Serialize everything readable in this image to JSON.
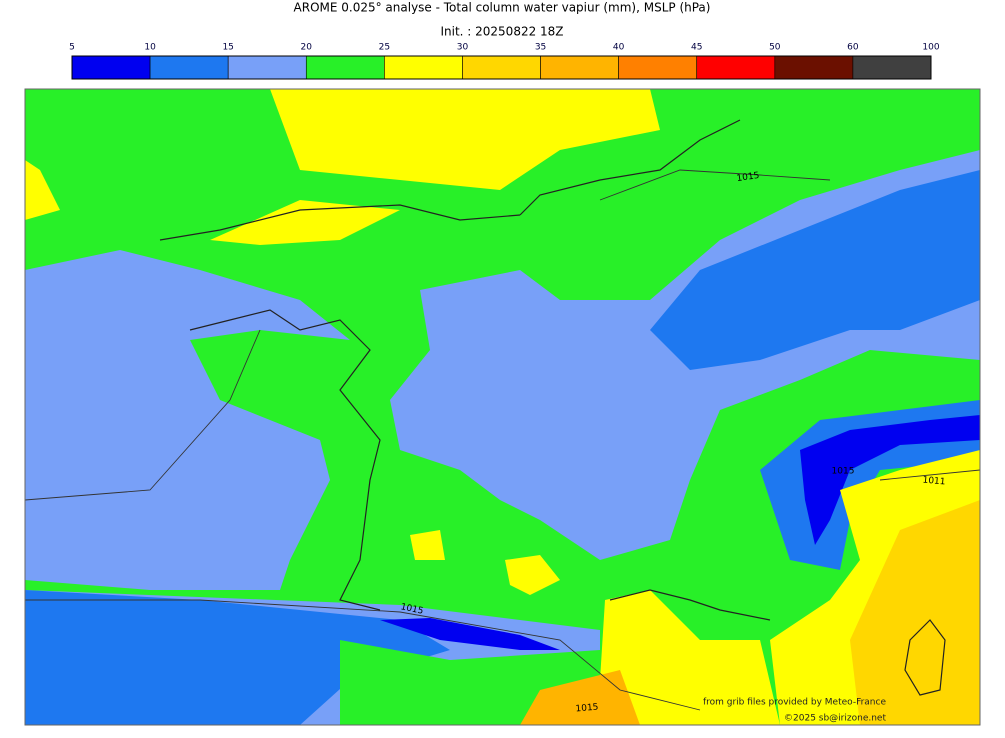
{
  "header": {
    "title": "AROME 0.025° analyse - Total column water vapiur (mm), MSLP (hPa)",
    "subtitle": "Init. : 20250822 18Z"
  },
  "colorbar": {
    "bounds": [
      5,
      10,
      15,
      20,
      25,
      30,
      35,
      40,
      45,
      50,
      60,
      100
    ],
    "colors": [
      "#0000f0",
      "#1e78f0",
      "#78a0f8",
      "#28f028",
      "#ffff00",
      "#ffd700",
      "#ffb400",
      "#ff8000",
      "#ff0000",
      "#6b1000",
      "#404040"
    ]
  },
  "contour_labels": [
    "1015",
    "1015",
    "1011",
    "1015",
    "1015"
  ],
  "credits": [
    "from grib files provided by Meteo-France",
    "©2025 sb@irizone.net"
  ]
}
